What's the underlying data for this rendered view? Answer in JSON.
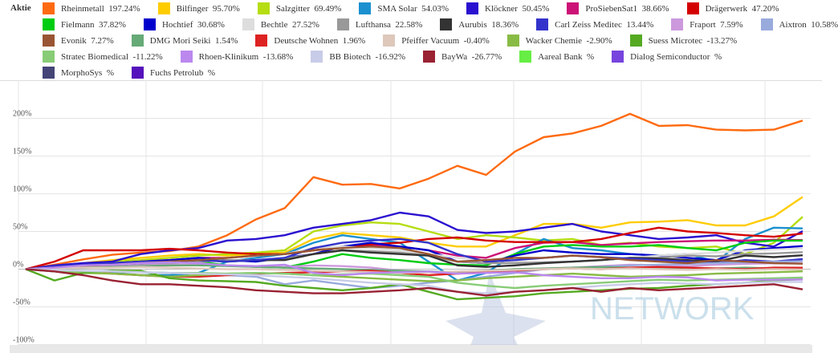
{
  "legend_title": "Aktie",
  "watermark": "NETWORK",
  "chart_data": {
    "type": "line",
    "title": "",
    "xlabel": "",
    "ylabel": "",
    "ylim": [
      -100,
      240
    ],
    "yticks": [
      "-100%",
      "-50%",
      "0%",
      "50%",
      "100%",
      "150%",
      "200%"
    ],
    "ytick_values": [
      -100,
      -50,
      0,
      50,
      100,
      150,
      200
    ],
    "grid": true,
    "legend": "top",
    "series": [
      {
        "name": "Rheinmetall",
        "change": "197.24%",
        "color": "#ff6a10",
        "values": [
          0,
          6,
          13,
          19,
          22,
          24,
          30,
          45,
          66,
          81,
          122,
          112,
          113,
          107,
          120,
          137,
          125,
          156,
          175,
          180,
          190,
          206,
          190,
          191,
          185,
          184,
          185,
          197
        ]
      },
      {
        "name": "Bilfinger",
        "change": "95.70%",
        "color": "#ffcc00",
        "values": [
          0,
          3,
          8,
          12,
          15,
          18,
          20,
          18,
          20,
          22,
          40,
          48,
          45,
          42,
          35,
          30,
          30,
          45,
          60,
          60,
          55,
          62,
          63,
          65,
          58,
          58,
          70,
          95.7
        ]
      },
      {
        "name": "Salzgitter",
        "change": "69.49%",
        "color": "#b5dd11",
        "values": [
          0,
          3,
          6,
          10,
          12,
          15,
          18,
          20,
          22,
          25,
          50,
          58,
          62,
          60,
          50,
          40,
          45,
          42,
          38,
          40,
          32,
          35,
          30,
          28,
          30,
          20,
          35,
          69.5
        ]
      },
      {
        "name": "SMA Solar",
        "change": "54.03%",
        "color": "#1a90d0",
        "values": [
          0,
          -3,
          -5,
          -5,
          -8,
          -8,
          -5,
          10,
          15,
          20,
          35,
          45,
          40,
          35,
          10,
          -15,
          -5,
          20,
          40,
          28,
          25,
          20,
          18,
          20,
          10,
          40,
          55,
          54
        ]
      },
      {
        "name": "Klöckner",
        "change": "50.45%",
        "color": "#2a10d0",
        "values": [
          0,
          5,
          8,
          10,
          20,
          25,
          28,
          38,
          40,
          45,
          55,
          60,
          65,
          75,
          70,
          52,
          48,
          50,
          55,
          60,
          50,
          45,
          40,
          42,
          45,
          35,
          30,
          50.45
        ]
      },
      {
        "name": "ProSiebenSat1",
        "change": "38.66%",
        "color": "#cc1177",
        "values": [
          0,
          2,
          5,
          8,
          10,
          12,
          15,
          15,
          18,
          20,
          25,
          30,
          32,
          30,
          25,
          18,
          15,
          28,
          35,
          36,
          32,
          34,
          36,
          37,
          38,
          38,
          39,
          38.66
        ]
      },
      {
        "name": "Drägerwerk",
        "change": "47.20%",
        "color": "#d40000",
        "values": [
          0,
          10,
          25,
          25,
          25,
          27,
          25,
          22,
          20,
          20,
          25,
          30,
          33,
          35,
          40,
          42,
          38,
          36,
          36,
          36,
          40,
          48,
          55,
          50,
          48,
          45,
          43,
          47.2
        ]
      },
      {
        "name": "Fielmann",
        "change": "37.82%",
        "color": "#00cc11",
        "values": [
          0,
          2,
          3,
          5,
          7,
          8,
          10,
          5,
          3,
          2,
          10,
          20,
          15,
          12,
          8,
          6,
          5,
          20,
          30,
          32,
          30,
          30,
          32,
          28,
          25,
          35,
          38,
          37.82
        ]
      },
      {
        "name": "Hochtief",
        "change": "30.68%",
        "color": "#0000cc",
        "values": [
          0,
          3,
          5,
          8,
          10,
          12,
          15,
          12,
          10,
          15,
          20,
          30,
          35,
          30,
          25,
          10,
          8,
          18,
          25,
          22,
          20,
          20,
          18,
          15,
          12,
          25,
          28,
          30.68
        ]
      },
      {
        "name": "Bechtle",
        "change": "27.52%",
        "color": "#dddddd",
        "values": [
          0,
          2,
          4,
          6,
          8,
          10,
          12,
          15,
          18,
          20,
          28,
          30,
          28,
          25,
          20,
          15,
          12,
          10,
          8,
          10,
          12,
          15,
          18,
          20,
          22,
          24,
          26,
          27.52
        ]
      },
      {
        "name": "Lufthansa",
        "change": "22.58%",
        "color": "#999999",
        "values": [
          0,
          1,
          3,
          5,
          6,
          8,
          10,
          12,
          12,
          14,
          20,
          25,
          24,
          22,
          18,
          10,
          8,
          8,
          9,
          10,
          12,
          15,
          15,
          18,
          17,
          20,
          21,
          22.58
        ]
      },
      {
        "name": "Aurubis",
        "change": "18.36%",
        "color": "#333333",
        "values": [
          0,
          2,
          4,
          6,
          8,
          10,
          12,
          10,
          12,
          12,
          20,
          25,
          22,
          20,
          18,
          5,
          3,
          5,
          8,
          10,
          12,
          15,
          14,
          12,
          10,
          18,
          16,
          18.36
        ]
      },
      {
        "name": "Carl Zeiss Meditec",
        "change": "13.44%",
        "color": "#3333cc",
        "values": [
          0,
          4,
          6,
          8,
          10,
          10,
          12,
          10,
          12,
          15,
          28,
          35,
          38,
          40,
          35,
          20,
          10,
          12,
          15,
          18,
          16,
          14,
          12,
          10,
          8,
          12,
          10,
          13.44
        ]
      },
      {
        "name": "Fraport",
        "change": "7.59%",
        "color": "#cc99dd",
        "values": [
          0,
          1,
          2,
          4,
          5,
          6,
          6,
          5,
          4,
          3,
          5,
          4,
          2,
          -2,
          -4,
          -6,
          -5,
          -3,
          0,
          2,
          4,
          6,
          5,
          4,
          6,
          7,
          8,
          7.59
        ]
      },
      {
        "name": "Aixtron",
        "change": "10.58%",
        "color": "#99aadd",
        "values": [
          0,
          -2,
          -3,
          -2,
          -4,
          -5,
          -6,
          -8,
          -10,
          -20,
          -15,
          -20,
          -25,
          -22,
          -18,
          -15,
          -10,
          -5,
          0,
          2,
          3,
          5,
          6,
          7,
          8,
          9,
          10,
          10.58
        ]
      },
      {
        "name": "Evonik",
        "change": "7.27%",
        "color": "#995533",
        "values": [
          0,
          2,
          4,
          6,
          8,
          10,
          12,
          15,
          18,
          20,
          25,
          28,
          30,
          28,
          20,
          10,
          12,
          15,
          15,
          18,
          16,
          12,
          10,
          8,
          12,
          10,
          8,
          7.27
        ]
      },
      {
        "name": "DMG Mori Seiki",
        "change": "1.54%",
        "color": "#66aa77",
        "values": [
          0,
          1,
          2,
          3,
          4,
          5,
          5,
          4,
          3,
          2,
          1,
          0,
          -1,
          -2,
          -3,
          -4,
          -2,
          0,
          1,
          2,
          3,
          2,
          1,
          2,
          1,
          2,
          1,
          1.54
        ]
      },
      {
        "name": "Deutsche Wohnen",
        "change": "1.96%",
        "color": "#dd2222",
        "values": [
          0,
          -2,
          -4,
          -6,
          -8,
          -10,
          -10,
          -8,
          -6,
          -5,
          -4,
          -3,
          -2,
          -5,
          -8,
          -6,
          -4,
          -2,
          0,
          1,
          0,
          2,
          3,
          2,
          1,
          0,
          2,
          1.96
        ]
      },
      {
        "name": "Pfeiffer Vacuum",
        "change": "-0.40%",
        "color": "#ddc8bb",
        "values": [
          0,
          1,
          2,
          2,
          3,
          2,
          1,
          0,
          0,
          -1,
          -2,
          -3,
          -4,
          -5,
          -4,
          -3,
          -2,
          -1,
          0,
          1,
          0,
          1,
          0,
          -1,
          0,
          -1,
          0,
          -0.4
        ]
      },
      {
        "name": "Wacker Chemie",
        "change": "-2.90%",
        "color": "#88bb44",
        "values": [
          0,
          -3,
          -5,
          -6,
          -8,
          -10,
          -8,
          -6,
          -5,
          -6,
          -8,
          -10,
          -12,
          -14,
          -16,
          -15,
          -12,
          -10,
          -8,
          -6,
          -8,
          -10,
          -9,
          -8,
          -6,
          -5,
          -4,
          -2.9
        ]
      },
      {
        "name": "Suess Microtec",
        "change": "-13.27%",
        "color": "#55aa22",
        "values": [
          0,
          -15,
          -5,
          -2,
          -2,
          -12,
          -15,
          -16,
          -17,
          -22,
          -25,
          -28,
          -25,
          -20,
          -30,
          -40,
          -38,
          -36,
          -32,
          -30,
          -28,
          -26,
          -25,
          -22,
          -20,
          -18,
          -15,
          -13.27
        ]
      },
      {
        "name": "Stratec Biomedical",
        "change": "-11.22%",
        "color": "#88cc77",
        "values": [
          0,
          -2,
          -3,
          -3,
          -4,
          -5,
          -5,
          -6,
          -5,
          -6,
          -8,
          -7,
          -6,
          -8,
          -10,
          -18,
          -22,
          -25,
          -22,
          -20,
          -18,
          -16,
          -14,
          -15,
          -14,
          -13,
          -12,
          -11.22
        ]
      },
      {
        "name": "Rhoen-Klinikum",
        "change": "-13.68%",
        "color": "#bb88ee",
        "values": [
          0,
          2,
          5,
          6,
          8,
          9,
          8,
          5,
          4,
          6,
          -5,
          -8,
          -5,
          -4,
          -3,
          -6,
          -5,
          -4,
          -8,
          -10,
          -12,
          -12,
          -10,
          -11,
          -15,
          -14,
          -14,
          -13.68
        ]
      },
      {
        "name": "BB Biotech",
        "change": "-16.92%",
        "color": "#c8cce8",
        "values": [
          0,
          -1,
          -2,
          -3,
          -4,
          -5,
          -6,
          -7,
          -8,
          -10,
          -12,
          -15,
          -18,
          -20,
          -22,
          -30,
          -32,
          -30,
          -28,
          -25,
          -22,
          -20,
          -18,
          -19,
          -20,
          -18,
          -17,
          -16.92
        ]
      },
      {
        "name": "BayWa",
        "change": "-26.77%",
        "color": "#992233",
        "values": [
          0,
          -3,
          -8,
          -15,
          -20,
          -20,
          -22,
          -24,
          -28,
          -30,
          -32,
          -32,
          -30,
          -28,
          -25,
          -30,
          -35,
          -30,
          -28,
          -25,
          -30,
          -25,
          -28,
          -26,
          -24,
          -22,
          -20,
          -26.77
        ]
      },
      {
        "name": "Aareal Bank",
        "change": "%",
        "color": "#66ee44",
        "values": []
      },
      {
        "name": "Dialog Semiconductor",
        "change": "%",
        "color": "#7744dd",
        "values": []
      },
      {
        "name": "MorphoSys",
        "change": "%",
        "color": "#444477",
        "values": []
      },
      {
        "name": "Fuchs Petrolub",
        "change": "%",
        "color": "#5511bb",
        "values": []
      }
    ]
  }
}
